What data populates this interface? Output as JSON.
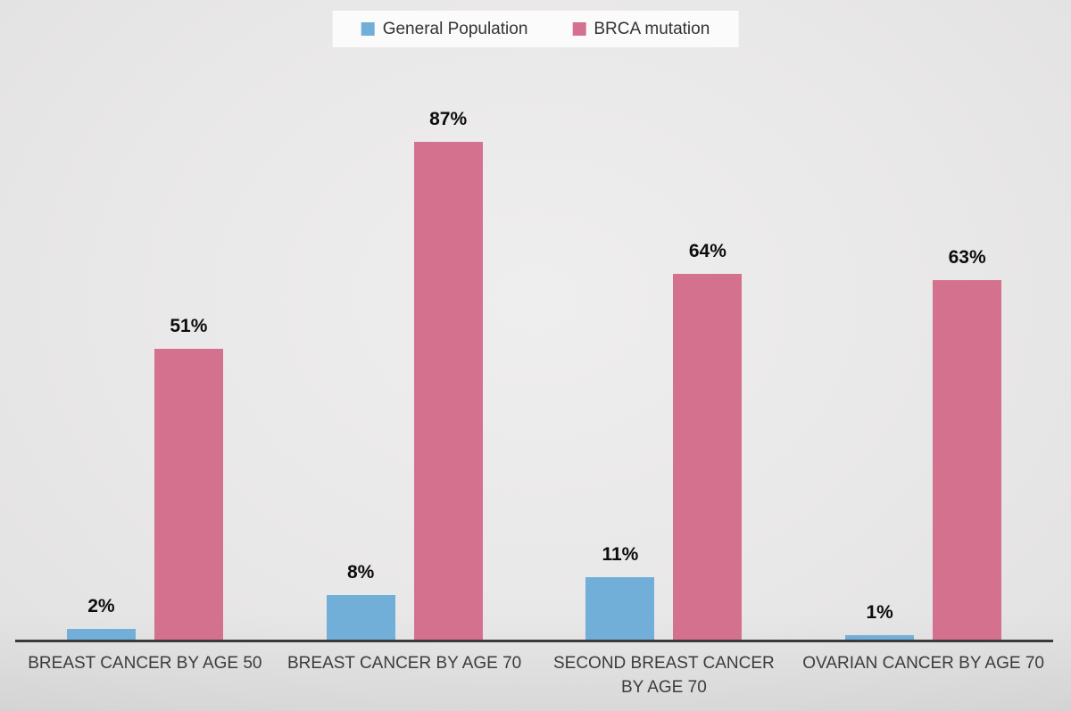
{
  "chart_data": {
    "type": "bar",
    "title": "",
    "xlabel": "",
    "ylabel": "",
    "ylim": [
      0,
      100
    ],
    "grid": false,
    "legend_position": "top",
    "categories": [
      "BREAST CANCER BY AGE 50",
      "BREAST CANCER BY AGE 70",
      "SECOND BREAST CANCER BY AGE 70",
      "OVARIAN CANCER BY AGE 70"
    ],
    "series": [
      {
        "name": "General Population",
        "color": "#72AFD8",
        "values": [
          2,
          8,
          11,
          1
        ],
        "labels": [
          "2%",
          "8%",
          "11%",
          "1%"
        ]
      },
      {
        "name": "BRCA mutation",
        "color": "#D4718F",
        "values": [
          51,
          87,
          64,
          63
        ],
        "labels": [
          "51%",
          "87%",
          "64%",
          "63%"
        ]
      }
    ]
  },
  "legend": {
    "items": [
      {
        "label": "General Population",
        "color": "#72AFD8"
      },
      {
        "label": "BRCA mutation",
        "color": "#D4718F"
      }
    ]
  },
  "colors": {
    "background": "#E9E8E8",
    "legend_background": "#FBFBFB",
    "axis_line": "#3A3A3A",
    "value_label": "#0D0D0D",
    "category_label": "#3C3C3C"
  }
}
